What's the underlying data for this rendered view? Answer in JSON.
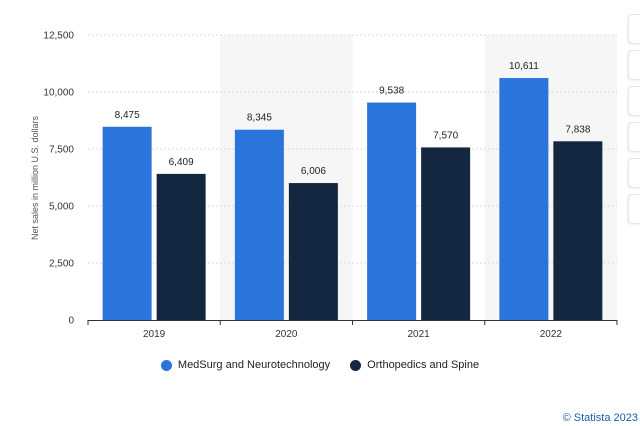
{
  "chart_data": {
    "type": "bar",
    "categories": [
      "2019",
      "2020",
      "2021",
      "2022"
    ],
    "series": [
      {
        "name": "MedSurg and Neurotechnology",
        "values": [
          8475,
          8345,
          9538,
          10611
        ],
        "labels": [
          "8,475",
          "8,345",
          "9,538",
          "10,611"
        ],
        "color": "#2a74dc"
      },
      {
        "name": "Orthopedics and Spine",
        "values": [
          6409,
          6006,
          7570,
          7838
        ],
        "labels": [
          "6,409",
          "6,006",
          "7,570",
          "7,838"
        ],
        "color": "#132741"
      }
    ],
    "ylabel": "Net sales in million U.S. dollars",
    "ylim": [
      0,
      12500
    ],
    "yticks": [
      0,
      2500,
      5000,
      7500,
      10000,
      12500
    ],
    "ytick_labels": [
      "0",
      "2,500",
      "5,000",
      "7,500",
      "10,000",
      "12,500"
    ],
    "grid": true,
    "legend_position": "bottom"
  },
  "credit": "© Statista 2023",
  "side_toolbar": {
    "buttons": [
      "button",
      "button",
      "button",
      "button",
      "button",
      "button"
    ]
  }
}
